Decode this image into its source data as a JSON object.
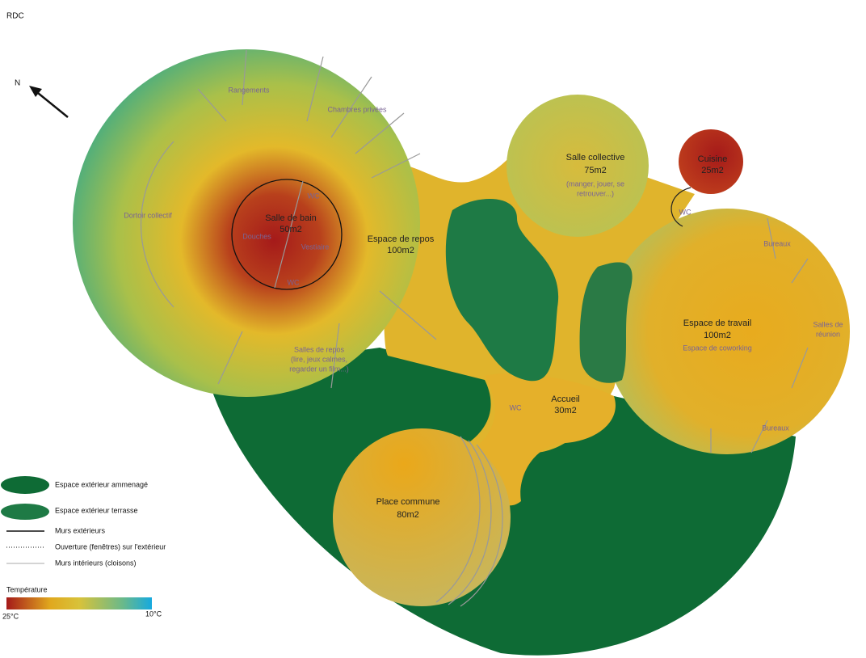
{
  "header": {
    "title": "RDC",
    "north": "N"
  },
  "rooms": [
    {
      "name": "Rangements"
    },
    {
      "name": "Chambres privées"
    },
    {
      "name": "Dortoir collectif"
    },
    {
      "name": "Salle de bain",
      "area": "50m2"
    },
    {
      "name": "Douches"
    },
    {
      "name": "WC"
    },
    {
      "name": "Vestiaire"
    },
    {
      "name": "WC"
    },
    {
      "name": "Espace de repos",
      "area": "100m2"
    },
    {
      "name": "Salles de repos",
      "note": [
        "(lire, jeux calmes,",
        "regarder un film...)"
      ]
    },
    {
      "name": "Salle collective",
      "area": "75m2",
      "note": [
        "(manger, jouer, se",
        "retrouver...)"
      ]
    },
    {
      "name": "Cuisine",
      "area": "25m2"
    },
    {
      "name": "WC"
    },
    {
      "name": "Bureaux"
    },
    {
      "name": [
        "Salles de",
        "réunion"
      ]
    },
    {
      "name": "Espace de travail",
      "area": "100m2",
      "note": [
        "Espace de coworking"
      ]
    },
    {
      "name": "Bureaux"
    },
    {
      "name": "Accueil",
      "area": "30m2"
    },
    {
      "name": "WC"
    },
    {
      "name": "Place commune",
      "area": "80m2"
    }
  ],
  "legend": {
    "items": [
      "Espace extérieur ammenagé",
      "Espace extérieur terrasse",
      "Murs extérieurs",
      "Ouverture (fenêtres) sur l'extérieur",
      "Murs intérieurs (cloisons)"
    ],
    "scale": {
      "title": "Température",
      "min_label": "25°C",
      "max_label": "10°C"
    }
  }
}
